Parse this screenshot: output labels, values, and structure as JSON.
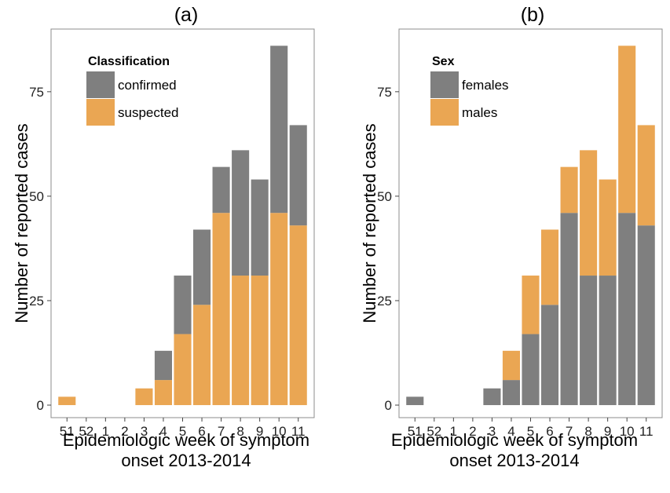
{
  "colors": {
    "grey": "#7f7f7f",
    "orange": "#eaa653",
    "panel_border": "#8c8c8c",
    "tick": "#444444"
  },
  "chart_data": [
    {
      "type": "bar",
      "stacked": true,
      "title": "(a)",
      "xlabel": [
        "Epidemiologic week of symptom",
        "onset 2013-2014"
      ],
      "ylabel": "Number of reported cases",
      "yticks": [
        0,
        25,
        50,
        75
      ],
      "ylim": [
        -3,
        90
      ],
      "grid": false,
      "categories": [
        "51",
        "52",
        "1",
        "2",
        "3",
        "4",
        "5",
        "6",
        "7",
        "8",
        "9",
        "10",
        "11"
      ],
      "legend": {
        "title": "Classification",
        "position": "top-left"
      },
      "series": [
        {
          "name": "confirmed",
          "color": "#7f7f7f",
          "values": [
            0,
            0,
            0,
            0,
            0,
            7,
            14,
            18,
            11,
            30,
            23,
            40,
            24
          ]
        },
        {
          "name": "suspected",
          "color": "#eaa653",
          "values": [
            2,
            0,
            0,
            0,
            4,
            6,
            17,
            24,
            46,
            31,
            31,
            46,
            43
          ]
        }
      ]
    },
    {
      "type": "bar",
      "stacked": true,
      "title": "(b)",
      "xlabel": [
        "Epidemiologic week of symptom",
        "onset 2013-2014"
      ],
      "ylabel": "Number of reported cases",
      "yticks": [
        0,
        25,
        50,
        75
      ],
      "ylim": [
        -3,
        90
      ],
      "grid": false,
      "categories": [
        "51",
        "52",
        "1",
        "2",
        "3",
        "4",
        "5",
        "6",
        "7",
        "8",
        "9",
        "10",
        "11"
      ],
      "legend": {
        "title": "Sex",
        "position": "top-left"
      },
      "series": [
        {
          "name": "females",
          "color": "#7f7f7f",
          "values": [
            2,
            0,
            0,
            0,
            4,
            6,
            17,
            24,
            46,
            31,
            31,
            46,
            43
          ]
        },
        {
          "name": "males",
          "color": "#eaa653",
          "values": [
            0,
            0,
            0,
            0,
            0,
            7,
            14,
            18,
            11,
            30,
            23,
            40,
            24
          ]
        }
      ]
    }
  ]
}
